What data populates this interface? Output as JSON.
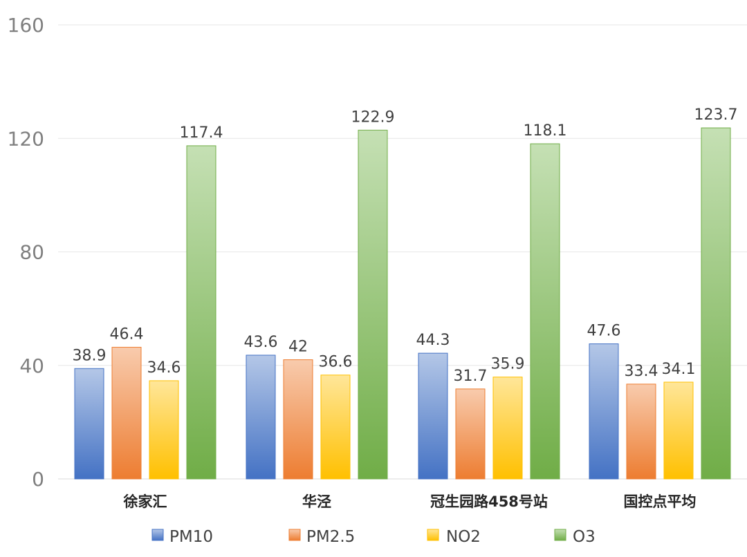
{
  "chart_data": {
    "type": "bar",
    "categories": [
      "徐家汇",
      "华泾",
      "冠生园路458号站",
      "国控点平均"
    ],
    "series": [
      {
        "name": "PM10",
        "values": [
          38.9,
          43.6,
          44.3,
          47.6
        ],
        "color_top": "#b4c7e7",
        "color_bottom": "#4472c4"
      },
      {
        "name": "PM2.5",
        "values": [
          46.4,
          42,
          31.7,
          33.4
        ],
        "color_top": "#f8cbad",
        "color_bottom": "#ed7d31"
      },
      {
        "name": "NO2",
        "values": [
          34.6,
          36.6,
          35.9,
          34.1
        ],
        "color_top": "#ffe699",
        "color_bottom": "#ffc000"
      },
      {
        "name": "O3",
        "values": [
          117.4,
          122.9,
          118.1,
          123.7
        ],
        "color_top": "#c5e0b4",
        "color_bottom": "#70ad47"
      }
    ],
    "value_labels": [
      [
        "38.9",
        "43.6",
        "44.3",
        "47.6"
      ],
      [
        "46.4",
        "42",
        "31.7",
        "33.4"
      ],
      [
        "34.6",
        "36.6",
        "35.9",
        "34.1"
      ],
      [
        "117.4",
        "122.9",
        "118.1",
        "123.7"
      ]
    ],
    "ylim": [
      0,
      160
    ],
    "yticks": [
      0,
      40,
      80,
      120,
      160
    ],
    "ytick_labels": [
      "0",
      "40",
      "80",
      "120",
      "160"
    ],
    "title": "",
    "xlabel": "",
    "ylabel": "",
    "grid": true,
    "legend_position": "bottom",
    "gridline_color": "#e6e6e6"
  }
}
